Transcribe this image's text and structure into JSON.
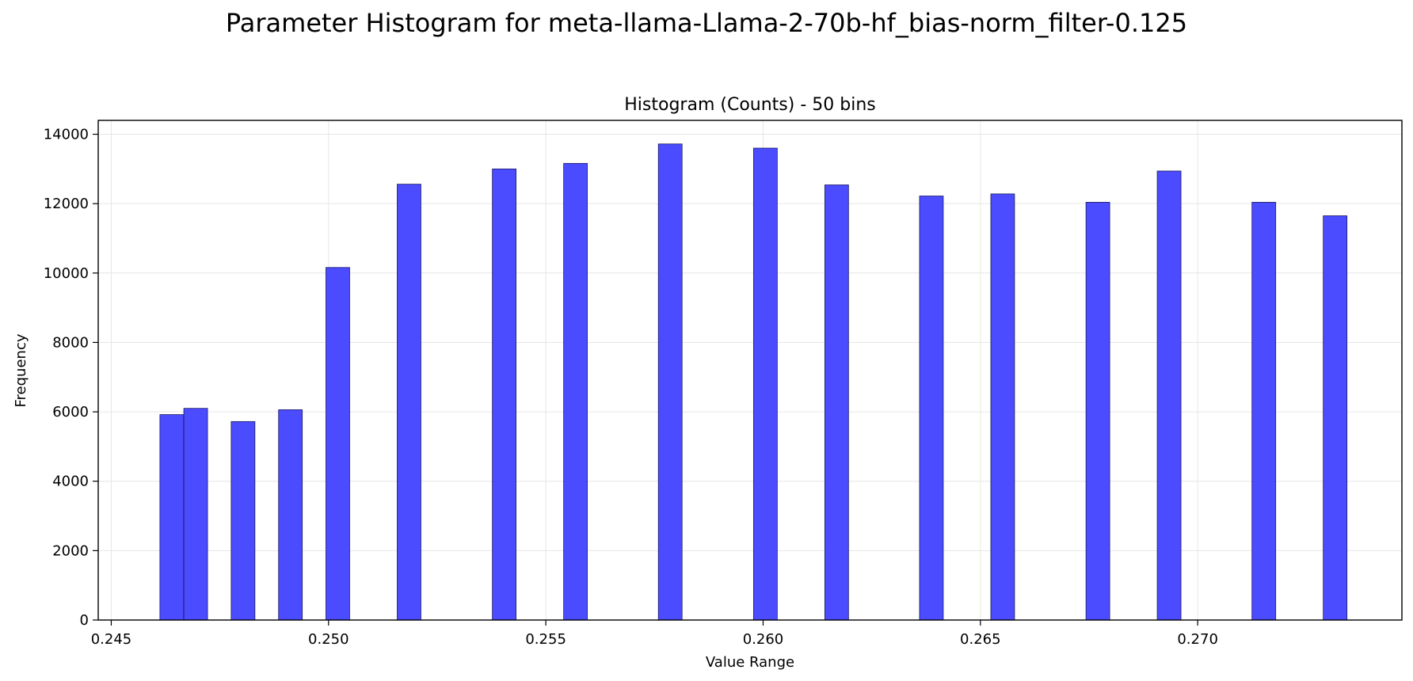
{
  "figure_title": "Parameter Histogram for meta-llama-Llama-2-70b-hf_bias-norm_filter-0.125",
  "chart_data": {
    "type": "bar",
    "title": "Histogram (Counts) - 50 bins",
    "xlabel": "Value Range",
    "ylabel": "Frequency",
    "xlim": [
      0.2447,
      0.2747
    ],
    "ylim": [
      0,
      14400
    ],
    "xticks": [
      0.245,
      0.25,
      0.255,
      0.26,
      0.265,
      0.27
    ],
    "xtick_labels": [
      "0.245",
      "0.250",
      "0.255",
      "0.260",
      "0.265",
      "0.270"
    ],
    "yticks": [
      0,
      2000,
      4000,
      6000,
      8000,
      10000,
      12000,
      14000
    ],
    "ytick_labels": [
      "0",
      "2000",
      "4000",
      "6000",
      "8000",
      "10000",
      "12000",
      "14000"
    ],
    "grid": true,
    "bar_color": "#4b4bff",
    "bar_edge_color": "#1a1a60",
    "bin_width": 0.000546,
    "bins": [
      {
        "x": 0.24612,
        "value": 5920
      },
      {
        "x": 0.24667,
        "value": 6100
      },
      {
        "x": 0.24776,
        "value": 5720
      },
      {
        "x": 0.24885,
        "value": 6060
      },
      {
        "x": 0.24994,
        "value": 10160
      },
      {
        "x": 0.25158,
        "value": 12560
      },
      {
        "x": 0.25377,
        "value": 13000
      },
      {
        "x": 0.25541,
        "value": 13160
      },
      {
        "x": 0.25759,
        "value": 13720
      },
      {
        "x": 0.25978,
        "value": 13600
      },
      {
        "x": 0.26142,
        "value": 12540
      },
      {
        "x": 0.2636,
        "value": 12220
      },
      {
        "x": 0.26524,
        "value": 12280
      },
      {
        "x": 0.26743,
        "value": 12040
      },
      {
        "x": 0.26907,
        "value": 12940
      },
      {
        "x": 0.27125,
        "value": 12040
      },
      {
        "x": 0.27289,
        "value": 11650
      }
    ]
  }
}
